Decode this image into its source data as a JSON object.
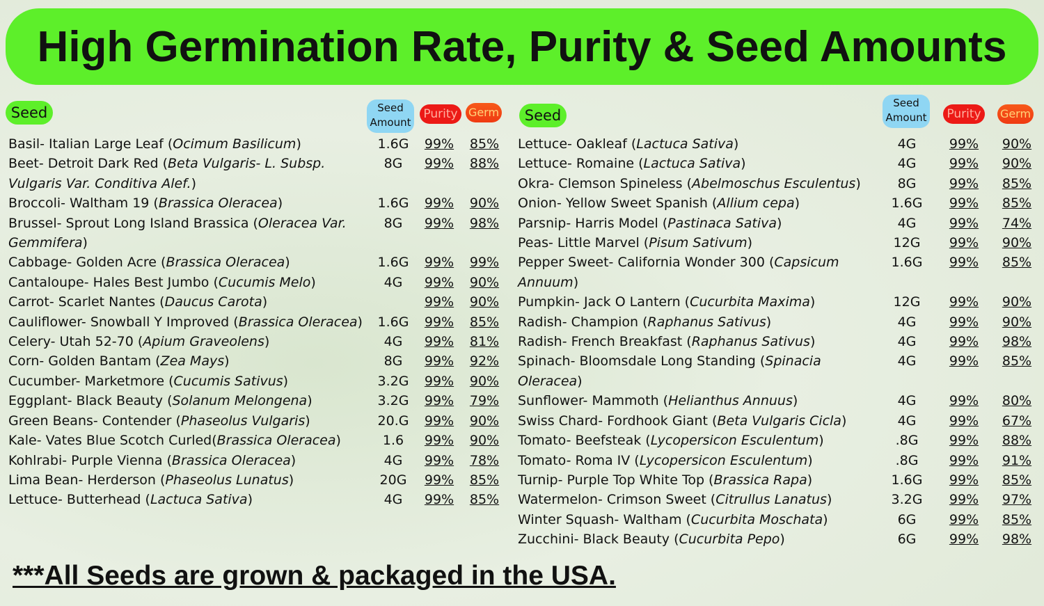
{
  "header": {
    "title": "High Germination Rate, Purity & Seed Amounts"
  },
  "tables": [
    {
      "headers": {
        "seed": "Seed",
        "amount": [
          "Seed",
          "Amount"
        ],
        "purity": "Purity",
        "germ": "Germ"
      },
      "rows": [
        {
          "name": [
            "Basil- Italian Large Leaf (",
            "Ocimum Basilicum",
            ")"
          ],
          "amount": "1.6G",
          "purity": "99%",
          "germ": "85%"
        },
        {
          "name": [
            "Beet- Detroit Dark Red (",
            "Beta Vulgaris- L. Subsp. Vulgaris Var. Conditiva Alef.",
            ")"
          ],
          "amount": "8G",
          "purity": "99%",
          "germ": "88%"
        },
        {
          "name": [
            "Broccoli- Waltham 19 (",
            "Brassica Oleracea",
            ")"
          ],
          "amount": "1.6G",
          "purity": "99%",
          "germ": "90%"
        },
        {
          "name": [
            "Brussel- Sprout Long Island Brassica (",
            "Oleracea Var. Gemmifera",
            ")"
          ],
          "amount": "8G",
          "purity": "99%",
          "germ": "98%"
        },
        {
          "name": [
            "Cabbage- Golden Acre (",
            "Brassica Oleracea",
            ")"
          ],
          "amount": "1.6G",
          "purity": "99%",
          "germ": "99%"
        },
        {
          "name": [
            "Cantaloupe- Hales Best Jumbo (",
            "Cucumis Melo",
            ")"
          ],
          "amount": "4G",
          "purity": "99%",
          "germ": "90%"
        },
        {
          "name": [
            "Carrot- Scarlet Nantes (",
            "Daucus Carota",
            ")"
          ],
          "purity": "99%",
          "germ": "90%"
        },
        {
          "name": [
            "Cauliflower- Snowball Y Improved (",
            "Brassica Oleracea",
            ")"
          ],
          "amount": "1.6G",
          "purity": "99%",
          "germ": "85%"
        },
        {
          "name": [
            "Celery- Utah 52-70 (",
            "Apium Graveolens",
            ")"
          ],
          "amount": "4G",
          "purity": "99%",
          "germ": "81%"
        },
        {
          "name": [
            "Corn- Golden Bantam (",
            "Zea Mays",
            ")"
          ],
          "amount": "8G",
          "purity": "99%",
          "germ": "92%"
        },
        {
          "name": [
            "Cucumber- Marketmore (",
            "Cucumis Sativus",
            ")"
          ],
          "amount": "3.2G",
          "purity": "99%",
          "germ": "90%"
        },
        {
          "name": [
            "Eggplant- Black Beauty (",
            "Solanum Melongena",
            ")"
          ],
          "amount": "3.2G",
          "purity": "99%",
          "germ": "79%"
        },
        {
          "name": [
            "Green Beans- Contender (",
            "Phaseolus Vulgaris",
            ")"
          ],
          "amount": "20.G",
          "purity": "99%",
          "germ": "90%"
        },
        {
          "name": [
            "Kale- Vates Blue Scotch Curled(",
            "Brassica Oleracea",
            ")"
          ],
          "amount": "1.6",
          "purity": "99%",
          "germ": "90%"
        },
        {
          "name": [
            "Kohlrabi- Purple Vienna (",
            "Brassica Oleracea",
            ")"
          ],
          "amount": "4G",
          "purity": "99%",
          "germ": "78%"
        },
        {
          "name": [
            "Lima Bean- Herderson (",
            "Phaseolus Lunatus",
            ")"
          ],
          "amount": "20G",
          "purity": "99%",
          "germ": "85%"
        },
        {
          "name": [
            "Lettuce- Butterhead (",
            "Lactuca Sativa",
            ")"
          ],
          "amount": "4G",
          "purity": "99%",
          "germ": "85%"
        }
      ]
    },
    {
      "headers": {
        "seed": "Seed",
        "amount": [
          "Seed",
          "Amount"
        ],
        "purity": "Purity",
        "germ": "Germ"
      },
      "rows": [
        {
          "name": [
            "Lettuce- Oakleaf (",
            "Lactuca Sativa",
            ")"
          ],
          "amount": "4G",
          "purity": "99%",
          "germ": "90%"
        },
        {
          "name": [
            "Lettuce- Romaine (",
            "Lactuca Sativa",
            ")"
          ],
          "amount": "4G",
          "purity": "99%",
          "germ": "90%"
        },
        {
          "name": [
            "Okra- Clemson Spineless (",
            "Abelmoschus Esculentus",
            ")"
          ],
          "amount": "8G",
          "purity": "99%",
          "germ": "85%"
        },
        {
          "name": [
            "Onion- Yellow Sweet Spanish (",
            "Allium cepa",
            ")"
          ],
          "amount": "1.6G",
          "purity": "99%",
          "germ": "85%"
        },
        {
          "name": [
            "Parsnip- Harris Model (",
            "Pastinaca Sativa",
            ")"
          ],
          "amount": "4G",
          "purity": "99%",
          "germ": "74%"
        },
        {
          "name": [
            "Peas- Little Marvel (",
            "Pisum Sativum",
            ")"
          ],
          "amount": "12G",
          "purity": "99%",
          "germ": "90%"
        },
        {
          "name": [
            "Pepper Sweet- California Wonder 300 (",
            "Capsicum Annuum",
            ")"
          ],
          "amount": "1.6G",
          "purity": "99%",
          "germ": "85%"
        },
        {
          "name": [
            "Pumpkin- Jack O Lantern (",
            "Cucurbita Maxima",
            ")"
          ],
          "amount": "12G",
          "purity": "99%",
          "germ": "90%"
        },
        {
          "name": [
            "Radish- Champion (",
            "Raphanus Sativus",
            ")"
          ],
          "amount": "4G",
          "purity": "99%",
          "germ": "90%"
        },
        {
          "name": [
            "Radish- French Breakfast (",
            "Raphanus Sativus",
            ")"
          ],
          "amount": "4G",
          "purity": "99%",
          "germ": "98%"
        },
        {
          "name": [
            "Spinach- Bloomsdale Long Standing (",
            "Spinacia Oleracea",
            ")"
          ],
          "amount": "4G",
          "purity": "99%",
          "germ": "85%"
        },
        {
          "name": [
            "Sunflower- Mammoth (",
            "Helianthus Annuus",
            ")"
          ],
          "amount": "4G",
          "purity": "99%",
          "germ": "80%"
        },
        {
          "name": [
            "Swiss Chard- Fordhook Giant (",
            "Beta Vulgaris Cicla",
            ")"
          ],
          "amount": "4G",
          "purity": "99%",
          "germ": "67%"
        },
        {
          "name": [
            "Tomato- Beefsteak (",
            "Lycopersicon Esculentum",
            ")"
          ],
          "amount": ".8G",
          "purity": "99%",
          "germ": "88%"
        },
        {
          "name": [
            "Tomato- Roma IV  (",
            "Lycopersicon Esculentum",
            ")"
          ],
          "amount": ".8G",
          "purity": "99%",
          "germ": "91%"
        },
        {
          "name": [
            "Turnip- Purple Top White Top (",
            "Brassica Rapa",
            ")"
          ],
          "amount": "1.6G",
          "purity": "99%",
          "germ": "85%"
        },
        {
          "name": [
            "Watermelon- Crimson Sweet (",
            "Citrullus Lanatus",
            ")"
          ],
          "amount": "3.2G",
          "purity": "99%",
          "germ": "97%"
        },
        {
          "name": [
            "Winter Squash- Waltham (",
            "Cucurbita Moschata",
            ")"
          ],
          "amount": "6G",
          "purity": "99%",
          "germ": "85%"
        },
        {
          "name": [
            "Zucchini-  Black Beauty (",
            "Cucurbita Pepo",
            ")"
          ],
          "amount": "6G",
          "purity": "99%",
          "germ": "98%"
        }
      ]
    }
  ],
  "footer": {
    "note": "***All Seeds are grown & packaged in the USA."
  }
}
